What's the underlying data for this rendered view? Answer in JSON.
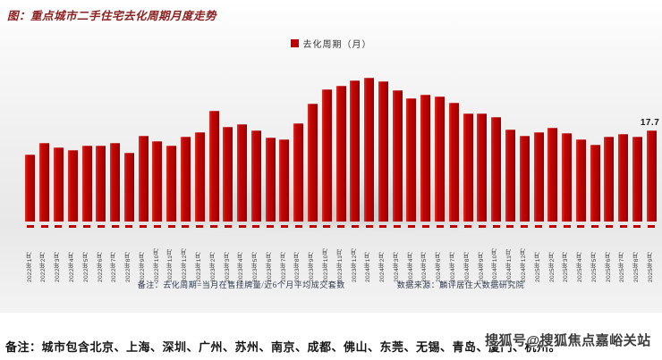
{
  "title": "图：重点城市二手住宅去化周期月度走势",
  "legend": {
    "label": "去化周期（月）",
    "swatch_color": "#c00000"
  },
  "chart_data": {
    "type": "bar",
    "title": "重点城市二手住宅去化周期月度走势",
    "series_name": "去化周期（月）",
    "bar_color": "#c00000",
    "grid": false,
    "legend_position": "top-center",
    "xlabel": "",
    "ylabel": "去化周期（月）",
    "ylim": [
      0,
      29
    ],
    "last_point_label": "17.7",
    "categories": [
      "2022年1月",
      "2022年2月",
      "2022年3月",
      "2022年4月",
      "2022年5月",
      "2022年6月",
      "2022年7月",
      "2022年8月",
      "2022年9月",
      "2022年10月",
      "2022年11月",
      "2022年12月",
      "2023年1月",
      "2023年2月",
      "2023年3月",
      "2023年4月",
      "2023年5月",
      "2023年6月",
      "2023年7月",
      "2023年8月",
      "2023年9月",
      "2023年10月",
      "2023年11月",
      "2023年12月",
      "2024年1月",
      "2024年2月",
      "2024年3月",
      "2024年4月",
      "2024年5月",
      "2024年6月",
      "2024年7月",
      "2024年8月",
      "2024年9月",
      "2024年10月",
      "2024年11月",
      "2024年12月",
      "2025年1月",
      "2025年2月",
      "2025年3月",
      "2025年4月",
      "2025年5月",
      "2025年6月",
      "2025年7月",
      "2025年8月",
      "2025年9月"
    ],
    "values": [
      12.9,
      15.2,
      14.4,
      13.8,
      14.7,
      14.8,
      15.3,
      13.3,
      16.7,
      15.5,
      14.7,
      16.4,
      17.3,
      21.4,
      18.4,
      18.9,
      17.6,
      16.3,
      15.9,
      19.0,
      22.8,
      25.6,
      26.3,
      27.4,
      27.8,
      27.1,
      25.4,
      23.8,
      24.5,
      24.3,
      23.1,
      20.9,
      21.0,
      20.2,
      17.8,
      16.6,
      17.3,
      18.2,
      17.2,
      16.0,
      14.9,
      16.5,
      17.0,
      16.5,
      17.7
    ]
  },
  "annotations": {
    "formula_note": "备注：去化周期=当月在售挂牌量/近6个月平均成交套数",
    "data_source": "数据来源：麟评居住大数据研究院",
    "cities_note": "备注：城市包含北京、上海、深圳、广州、苏州、南京、成都、佛山、东莞、无锡、青岛、厦门、杭州。",
    "watermark": "搜狐号@搜狐焦点嘉峪关站"
  }
}
